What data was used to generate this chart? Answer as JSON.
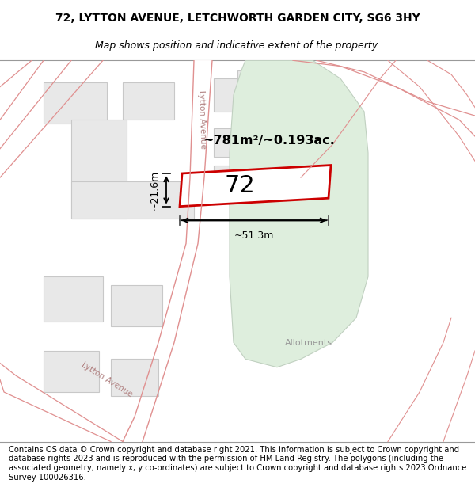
{
  "title_line1": "72, LYTTON AVENUE, LETCHWORTH GARDEN CITY, SG6 3HY",
  "title_line2": "Map shows position and indicative extent of the property.",
  "footer_text": "Contains OS data © Crown copyright and database right 2021. This information is subject to Crown copyright and database rights 2023 and is reproduced with the permission of HM Land Registry. The polygons (including the associated geometry, namely x, y co-ordinates) are subject to Crown copyright and database rights 2023 Ordnance Survey 100026316.",
  "map_bg": "#f8f8f8",
  "road_color": "#f5c8c8",
  "road_outline": "#e09090",
  "block_fill": "#e8e8e8",
  "block_edge": "#c8c8c8",
  "highlight_color": "#deeedd",
  "highlight_edge": "#c0d0c0",
  "plot_outline": "#cc0000",
  "label_72": "72",
  "area_label": "~781m²/~0.193ac.",
  "dim_width": "~51.3m",
  "dim_height": "~21.6m",
  "allotments_label": "Allotments",
  "road_label_upper": "Lytton Avenue",
  "road_label_lower": "Lytton Avenue",
  "title_fontsize": 10,
  "subtitle_fontsize": 9,
  "footer_fontsize": 7.2
}
